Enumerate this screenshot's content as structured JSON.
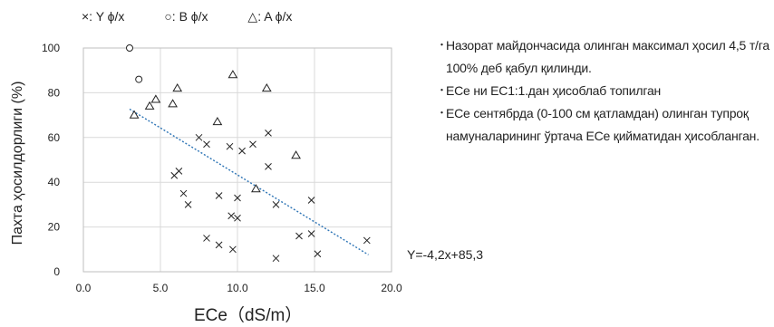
{
  "chart_data": {
    "type": "scatter",
    "legend": [
      {
        "marker": "×",
        "label": "Y ϕ/x"
      },
      {
        "marker": "○",
        "label": "B ϕ/x"
      },
      {
        "marker": "△",
        "label": "A ϕ/x"
      }
    ],
    "xlabel": "ECe（dS/m）",
    "ylabel": "Пахта ҳосилдорлиги (%)",
    "xlim": [
      0,
      20
    ],
    "ylim": [
      0,
      100
    ],
    "x_ticks": [
      "0.0",
      "5.0",
      "10.0",
      "15.0",
      "20.0"
    ],
    "y_ticks": [
      "0",
      "20",
      "40",
      "60",
      "80",
      "100"
    ],
    "grid": true,
    "series": [
      {
        "name": "Y ϕ/x",
        "marker": "x",
        "points": [
          [
            5.9,
            43
          ],
          [
            6.2,
            45
          ],
          [
            6.5,
            35
          ],
          [
            6.8,
            30
          ],
          [
            7.5,
            60
          ],
          [
            8.0,
            57
          ],
          [
            8.8,
            34
          ],
          [
            9.5,
            56
          ],
          [
            9.6,
            25
          ],
          [
            10.0,
            24
          ],
          [
            10.0,
            33
          ],
          [
            10.3,
            54
          ],
          [
            11.0,
            57
          ],
          [
            12.0,
            62
          ],
          [
            12.0,
            47
          ],
          [
            12.5,
            30
          ],
          [
            8.0,
            15
          ],
          [
            8.8,
            12
          ],
          [
            9.7,
            10
          ],
          [
            12.5,
            6
          ],
          [
            14.0,
            16
          ],
          [
            14.8,
            32
          ],
          [
            14.8,
            17
          ],
          [
            15.2,
            8
          ],
          [
            18.4,
            14
          ]
        ]
      },
      {
        "name": "B ϕ/x",
        "marker": "circle",
        "points": [
          [
            3.0,
            100
          ],
          [
            3.6,
            86
          ]
        ]
      },
      {
        "name": "A ϕ/x",
        "marker": "triangle",
        "points": [
          [
            3.3,
            70
          ],
          [
            4.3,
            74
          ],
          [
            4.7,
            77
          ],
          [
            5.8,
            75
          ],
          [
            6.1,
            82
          ],
          [
            8.7,
            67
          ],
          [
            9.7,
            88
          ],
          [
            11.9,
            82
          ],
          [
            11.2,
            37
          ],
          [
            13.8,
            52
          ]
        ]
      }
    ],
    "trendline": {
      "slope": -4.2,
      "intercept": 85.3,
      "x_range": [
        3,
        18.5
      ],
      "label": "Y=-4,2x+85,3",
      "color": "#2e75b6"
    }
  },
  "notes": [
    "Назорат майдончасида олинган максимал ҳосил 4,5 т/га 100% деб қабул қилинди.",
    "ECe ни EC1:1.дан ҳисоблаб топилган",
    "ECe сентябрда (0-100 см қатламдан) олинган тупроқ намуналарининг ўртача ECe қийматидан ҳисобланган."
  ],
  "bullet_char": "・"
}
